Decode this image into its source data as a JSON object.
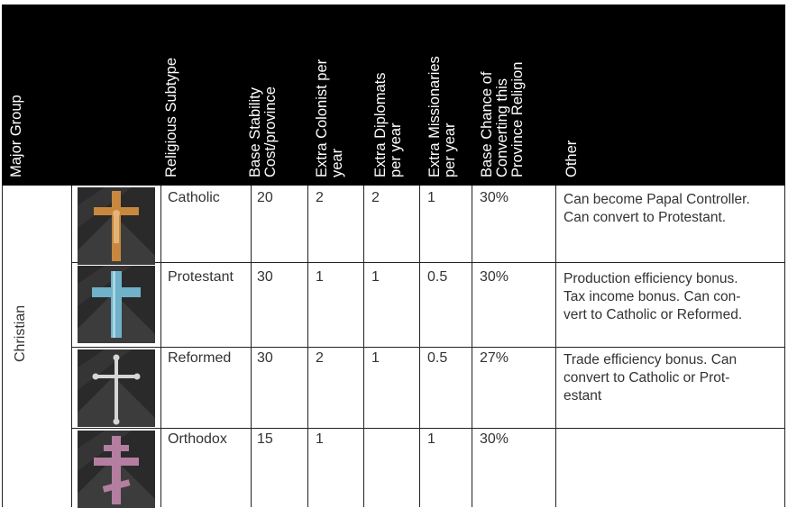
{
  "table": {
    "headers": {
      "major_group": "Major Group",
      "subtype": "Religious Subtype",
      "stability": [
        "Base Stability",
        "Cost/province"
      ],
      "colonist": [
        "Extra Colonist per",
        "year"
      ],
      "diplomats": [
        "Extra Diplomats",
        "per year"
      ],
      "missionaries": [
        "Extra Missionaries",
        "per year"
      ],
      "chance": [
        "Base Chance of",
        "Converting this",
        "Province Religion"
      ],
      "other": "Other"
    },
    "group": "Christian",
    "rows": [
      {
        "icon": "catholic-cross-icon",
        "subtype": "Catholic",
        "stability": "20",
        "colonist": "2",
        "diplomats": "2",
        "missionaries": "1",
        "chance": "30%",
        "other": [
          "Can become Papal Controller.",
          "Can convert to Protestant."
        ]
      },
      {
        "icon": "protestant-cross-icon",
        "subtype": "Protestant",
        "stability": "30",
        "colonist": "1",
        "diplomats": "1",
        "missionaries": "0.5",
        "chance": "30%",
        "other": [
          "Production efficiency bonus.",
          "Tax income bonus. Can con-",
          "vert to Catholic or Reformed."
        ]
      },
      {
        "icon": "reformed-cross-icon",
        "subtype": "Reformed",
        "stability": "30",
        "colonist": "2",
        "diplomats": "1",
        "missionaries": "0.5",
        "chance": "27%",
        "other": [
          "Trade efficiency bonus. Can",
          "convert to Catholic or Prot-",
          "estant"
        ]
      },
      {
        "icon": "orthodox-cross-icon",
        "subtype": "Orthodox",
        "stability": "15",
        "colonist": "1",
        "diplomats": "",
        "missionaries": "1",
        "chance": "30%",
        "other": []
      }
    ],
    "colors": {
      "header_bg": "#000000",
      "header_text": "#ffffff",
      "catholic_cross": "#c8873e",
      "protestant_cross": "#6fb2c9",
      "reformed_cross": "#d6d6d6",
      "orthodox_cross": "#b47ea0",
      "icon_bg": "#2a2a2a"
    }
  }
}
